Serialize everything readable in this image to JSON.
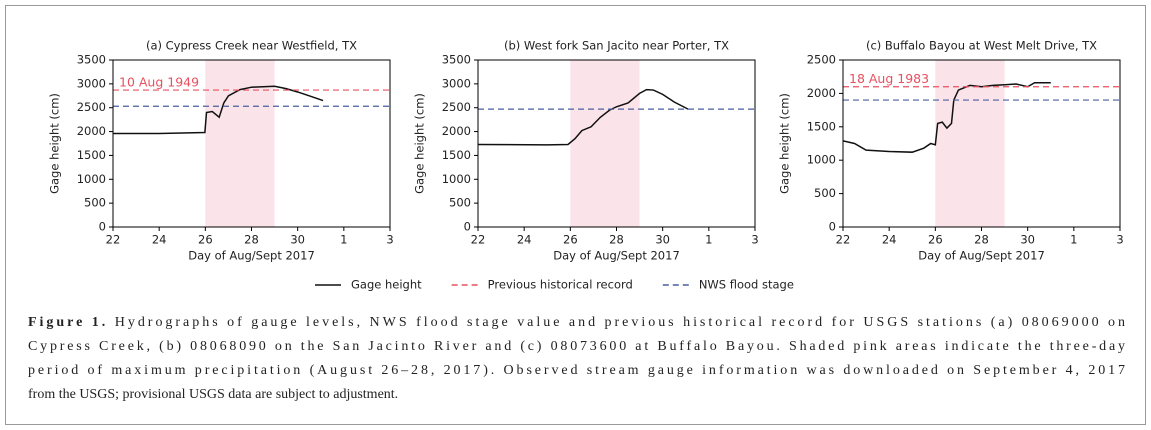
{
  "chart_data": [
    {
      "type": "line",
      "title": "(a) Cypress Creek near Westfield, TX",
      "xlabel": "Day of Aug/Sept 2017",
      "ylabel": "Gage height (cm)",
      "xlim": [
        22,
        34
      ],
      "xticks": [
        22,
        24,
        26,
        28,
        30,
        {
          "value": 32,
          "label": "1"
        },
        {
          "value": 34,
          "label": "3"
        }
      ],
      "ylim": [
        0,
        3500
      ],
      "yticks": [
        0,
        500,
        1000,
        1500,
        2000,
        2500,
        3000,
        3500
      ],
      "shade": [
        26,
        29
      ],
      "shade_color": "#fbe3ea",
      "annotation": "10 Aug 1949",
      "series": [
        {
          "name": "Gage height",
          "color": "#111111",
          "linestyle": "solid",
          "x": [
            22,
            24,
            25.5,
            25.98,
            26.05,
            26.3,
            26.6,
            26.8,
            27,
            27.5,
            28,
            29,
            29.5,
            30,
            30.5,
            31.1
          ],
          "values": [
            1960,
            1960,
            1975,
            1980,
            2400,
            2420,
            2300,
            2600,
            2750,
            2880,
            2930,
            2950,
            2900,
            2830,
            2750,
            2650
          ]
        },
        {
          "name": "Previous historical record",
          "color": "#e8505f",
          "linestyle": "dashed",
          "x": [
            22,
            34
          ],
          "values": [
            2870,
            2870
          ]
        },
        {
          "name": "NWS flood stage",
          "color": "#4a5fa0",
          "linestyle": "dashed",
          "x": [
            22,
            34
          ],
          "values": [
            2530,
            2530
          ]
        }
      ]
    },
    {
      "type": "line",
      "title": "(b) West fork San Jacito near Porter, TX",
      "xlabel": "Day of Aug/Sept 2017",
      "ylabel": "Gage height (cm)",
      "xlim": [
        22,
        34
      ],
      "xticks": [
        22,
        24,
        26,
        28,
        30,
        {
          "value": 32,
          "label": "1"
        },
        {
          "value": 34,
          "label": "3"
        }
      ],
      "ylim": [
        0,
        3500
      ],
      "yticks": [
        0,
        500,
        1000,
        1500,
        2000,
        2500,
        3000,
        3500
      ],
      "shade": [
        26,
        29
      ],
      "shade_color": "#fbe3ea",
      "series": [
        {
          "name": "Gage height",
          "color": "#111111",
          "linestyle": "solid",
          "x": [
            22,
            25,
            25.9,
            26.2,
            26.5,
            26.9,
            27.3,
            27.7,
            28,
            28.5,
            29,
            29.3,
            29.6,
            30,
            30.5,
            31.1
          ],
          "values": [
            1730,
            1720,
            1730,
            1850,
            2020,
            2100,
            2300,
            2450,
            2520,
            2600,
            2800,
            2880,
            2870,
            2780,
            2620,
            2470
          ]
        },
        {
          "name": "NWS flood stage",
          "color": "#4a5fa0",
          "linestyle": "dashed",
          "x": [
            22,
            34
          ],
          "values": [
            2470,
            2470
          ]
        }
      ]
    },
    {
      "type": "line",
      "title": "(c) Buffalo Bayou at West Melt Drive, TX",
      "xlabel": "Day of Aug/Sept 2017",
      "ylabel": "Gage height (cm)",
      "xlim": [
        22,
        34
      ],
      "xticks": [
        22,
        24,
        26,
        28,
        30,
        {
          "value": 32,
          "label": "1"
        },
        {
          "value": 34,
          "label": "3"
        }
      ],
      "ylim": [
        0,
        2500
      ],
      "yticks": [
        0,
        500,
        1000,
        1500,
        2000,
        2500
      ],
      "shade": [
        26,
        29
      ],
      "shade_color": "#fbe3ea",
      "annotation": "18 Aug 1983",
      "series": [
        {
          "name": "Gage height",
          "color": "#111111",
          "linestyle": "solid",
          "x": [
            22,
            22.5,
            23,
            24,
            25,
            25.5,
            25.8,
            26,
            26.1,
            26.3,
            26.5,
            26.7,
            26.8,
            27,
            27.5,
            28,
            28.5,
            29,
            29.5,
            30,
            30.3,
            31
          ],
          "values": [
            1290,
            1250,
            1150,
            1130,
            1120,
            1180,
            1250,
            1230,
            1550,
            1570,
            1480,
            1550,
            1900,
            2050,
            2120,
            2100,
            2120,
            2130,
            2140,
            2100,
            2160,
            2160
          ]
        },
        {
          "name": "Previous historical record",
          "color": "#e8505f",
          "linestyle": "dashed",
          "x": [
            22,
            34
          ],
          "values": [
            2100,
            2100
          ]
        },
        {
          "name": "NWS flood stage",
          "color": "#4a5fa0",
          "linestyle": "dashed",
          "x": [
            22,
            34
          ],
          "values": [
            1900,
            1900
          ]
        }
      ]
    }
  ],
  "caption": {
    "label": "Figure 1.",
    "lines": [
      " Hydrographs of gauge levels, NWS flood stage value and previous historical record for USGS stations (a) 08069000 on",
      "Cypress Creek, (b) 08068090 on the San Jacinto River and (c) 08073600 at Buffalo Bayou. Shaded pink areas indicate the three-day",
      "period of maximum precipitation (August 26–28, 2017). Observed stream gauge information was downloaded on September 4, 2017",
      "from the USGS; provisional USGS data are subject to adjustment."
    ]
  }
}
